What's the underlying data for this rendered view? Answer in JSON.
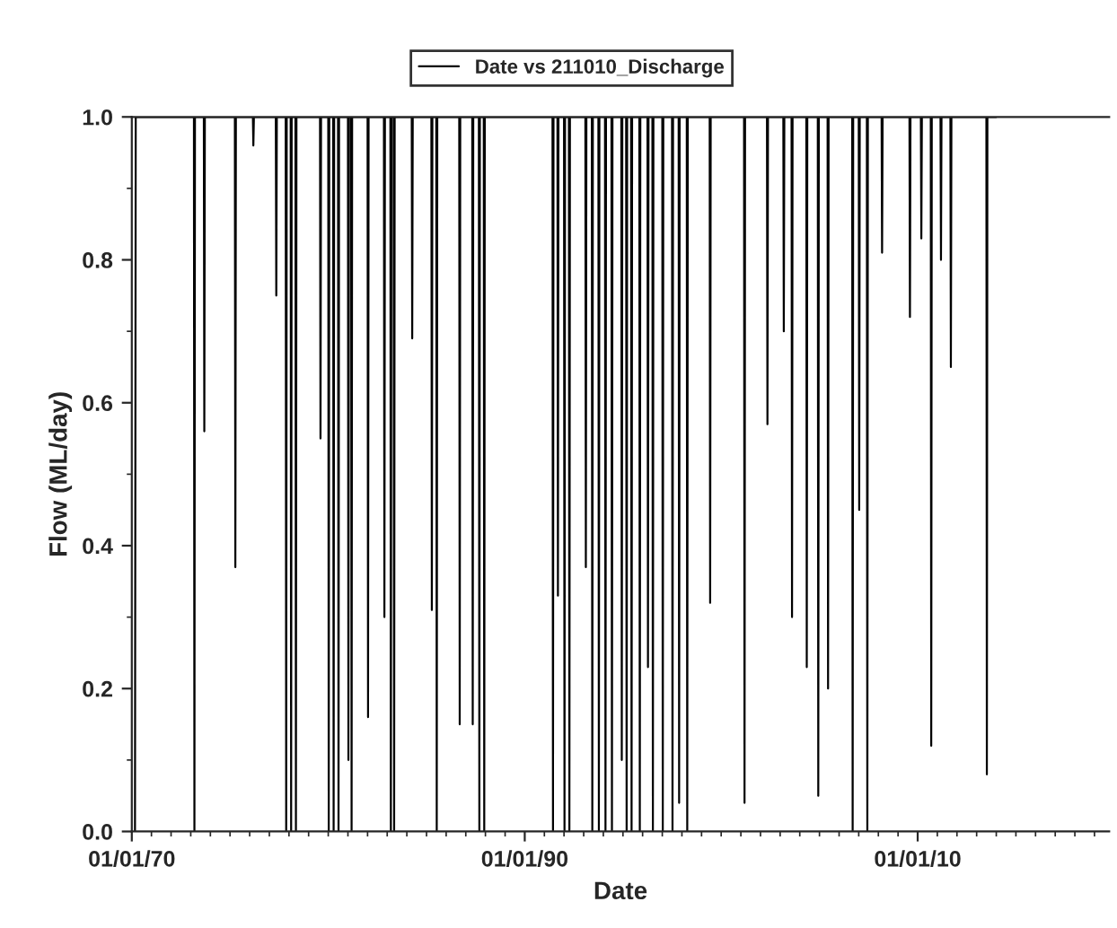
{
  "chart_data": {
    "type": "line",
    "xlabel": "Date",
    "ylabel": "Flow (ML/day)",
    "legend": "top",
    "grid": false,
    "xlim": [
      "1970-01-01",
      "2019-10-01"
    ],
    "ylim": [
      0,
      1.0
    ],
    "xticks": [
      {
        "value": "1970-01-01",
        "label": "01/01/70"
      },
      {
        "value": "1990-01-01",
        "label": "01/01/90"
      },
      {
        "value": "2010-01-01",
        "label": "01/01/10"
      },
      {
        "value": "1971-01-01",
        "label": null
      },
      {
        "value": "1972-01-01",
        "label": null
      },
      {
        "value": "1973-01-01",
        "label": null
      },
      {
        "value": "1974-01-01",
        "label": null
      },
      {
        "value": "1975-01-01",
        "label": null
      },
      {
        "value": "1976-01-01",
        "label": null
      },
      {
        "value": "1977-01-01",
        "label": null
      },
      {
        "value": "1978-01-01",
        "label": null
      },
      {
        "value": "1979-01-01",
        "label": null
      },
      {
        "value": "1980-01-01",
        "label": null
      },
      {
        "value": "1981-01-01",
        "label": null
      },
      {
        "value": "1982-01-01",
        "label": null
      },
      {
        "value": "1983-01-01",
        "label": null
      },
      {
        "value": "1984-01-01",
        "label": null
      },
      {
        "value": "1985-01-01",
        "label": null
      },
      {
        "value": "1986-01-01",
        "label": null
      },
      {
        "value": "1987-01-01",
        "label": null
      },
      {
        "value": "1988-01-01",
        "label": null
      },
      {
        "value": "1989-01-01",
        "label": null
      },
      {
        "value": "1991-01-01",
        "label": null
      },
      {
        "value": "1992-01-01",
        "label": null
      },
      {
        "value": "1993-01-01",
        "label": null
      },
      {
        "value": "1994-01-01",
        "label": null
      },
      {
        "value": "1995-01-01",
        "label": null
      },
      {
        "value": "1996-01-01",
        "label": null
      },
      {
        "value": "1997-01-01",
        "label": null
      },
      {
        "value": "1998-01-01",
        "label": null
      },
      {
        "value": "1999-01-01",
        "label": null
      },
      {
        "value": "2000-01-01",
        "label": null
      },
      {
        "value": "2001-01-01",
        "label": null
      },
      {
        "value": "2002-01-01",
        "label": null
      },
      {
        "value": "2003-01-01",
        "label": null
      },
      {
        "value": "2004-01-01",
        "label": null
      },
      {
        "value": "2005-01-01",
        "label": null
      },
      {
        "value": "2006-01-01",
        "label": null
      },
      {
        "value": "2007-01-01",
        "label": null
      },
      {
        "value": "2008-01-01",
        "label": null
      },
      {
        "value": "2009-01-01",
        "label": null
      },
      {
        "value": "2011-01-01",
        "label": null
      },
      {
        "value": "2012-01-01",
        "label": null
      },
      {
        "value": "2013-01-01",
        "label": null
      },
      {
        "value": "2014-01-01",
        "label": null
      },
      {
        "value": "2015-01-01",
        "label": null
      },
      {
        "value": "2016-01-01",
        "label": null
      },
      {
        "value": "2017-01-01",
        "label": null
      },
      {
        "value": "2018-01-01",
        "label": null
      },
      {
        "value": "2019-01-01",
        "label": null
      }
    ],
    "yticks": [
      {
        "value": 0,
        "label": "0.0"
      },
      0.2,
      0.4,
      0.6,
      0.8,
      {
        "value": 1.0,
        "label": "1.0"
      },
      {
        "value": 0.1,
        "label": null
      },
      {
        "value": 0.3,
        "label": null
      },
      {
        "value": 0.5,
        "label": null
      },
      {
        "value": 0.7,
        "label": null
      },
      {
        "value": 0.9,
        "label": null
      }
    ],
    "series": [
      {
        "name": "Date vs 211010_Discharge",
        "color": "#000000",
        "x": [
          "1970-03-01",
          "1970-03-15",
          "1973-03-01",
          "1973-03-10",
          "1973-03-20",
          "1973-09-01",
          "1973-09-10",
          "1973-09-20",
          "1975-04-01",
          "1975-04-10",
          "1975-04-20",
          "1976-03-01",
          "1976-03-10",
          "1976-03-20",
          "1977-05-01",
          "1977-05-10",
          "1977-05-20",
          "1977-11-01",
          "1977-11-10",
          "1977-11-20",
          "1978-02-01",
          "1978-02-10",
          "1978-02-20",
          "1978-05-01",
          "1978-05-10",
          "1978-05-20",
          "1979-08-01",
          "1979-08-10",
          "1979-08-20",
          "1980-01-01",
          "1980-01-10",
          "1980-01-20",
          "1980-04-01",
          "1980-04-10",
          "1980-04-20",
          "1980-07-01",
          "1980-07-10",
          "1980-07-20",
          "1981-01-01",
          "1981-01-10",
          "1981-01-20",
          "1981-03-01",
          "1981-03-10",
          "1981-03-20",
          "1982-01-01",
          "1982-01-10",
          "1982-01-20",
          "1982-11-01",
          "1982-11-10",
          "1982-11-20",
          "1983-03-01",
          "1983-03-10",
          "1983-03-20",
          "1983-05-01",
          "1983-05-10",
          "1983-05-20",
          "1984-04-01",
          "1984-04-10",
          "1984-04-20",
          "1985-04-01",
          "1985-04-10",
          "1985-04-20",
          "1985-07-01",
          "1985-07-10",
          "1985-07-20",
          "1986-09-01",
          "1986-09-10",
          "1986-09-20",
          "1987-05-01",
          "1987-05-10",
          "1987-05-20",
          "1987-09-01",
          "1987-09-10",
          "1987-09-20",
          "1987-12-01",
          "1987-12-10",
          "1987-12-20",
          "1991-06-01",
          "1991-06-10",
          "1991-06-20",
          "1991-09-01",
          "1991-09-10",
          "1991-09-20",
          "1992-01-01",
          "1992-01-10",
          "1992-01-20",
          "1992-04-01",
          "1992-04-10",
          "1992-04-20",
          "1993-02-01",
          "1993-02-10",
          "1993-02-20",
          "1993-06-01",
          "1993-06-10",
          "1993-06-20",
          "1993-10-01",
          "1993-10-10",
          "1993-10-20",
          "1994-02-01",
          "1994-02-10",
          "1994-02-20",
          "1994-06-01",
          "1994-06-10",
          "1994-06-20",
          "1994-12-01",
          "1994-12-10",
          "1994-12-20",
          "1995-03-01",
          "1995-03-10",
          "1995-03-20",
          "1995-06-01",
          "1995-06-10",
          "1995-06-20",
          "1995-11-01",
          "1995-11-10",
          "1995-11-20",
          "1996-04-01",
          "1996-04-10",
          "1996-04-20",
          "1996-07-01",
          "1996-07-10",
          "1996-07-20",
          "1997-01-01",
          "1997-01-10",
          "1997-01-20",
          "1997-07-01",
          "1997-07-10",
          "1997-07-20",
          "1997-11-01",
          "1997-11-10",
          "1997-11-20",
          "1998-04-01",
          "1998-04-10",
          "1998-04-20",
          "1999-06-01",
          "1999-06-10",
          "1999-06-20",
          "2001-03-01",
          "2001-03-10",
          "2001-03-20",
          "2002-05-01",
          "2002-05-10",
          "2002-05-20",
          "2003-03-01",
          "2003-03-10",
          "2003-03-20",
          "2003-08-01",
          "2003-08-10",
          "2003-08-20",
          "2004-05-01",
          "2004-05-10",
          "2004-05-20",
          "2004-12-01",
          "2004-12-10",
          "2004-12-20",
          "2005-06-01",
          "2005-06-10",
          "2005-06-20",
          "2006-09-01",
          "2006-09-10",
          "2006-09-20",
          "2007-01-01",
          "2007-01-10",
          "2007-01-20",
          "2007-06-01",
          "2007-06-10",
          "2007-06-20",
          "2008-03-01",
          "2008-03-10",
          "2008-03-20",
          "2009-08-01",
          "2009-08-10",
          "2009-08-20",
          "2010-03-01",
          "2010-03-10",
          "2010-03-20",
          "2010-09-01",
          "2010-09-10",
          "2010-09-20",
          "2011-03-01",
          "2011-03-10",
          "2011-03-20",
          "2011-09-01",
          "2011-09-10",
          "2011-09-20",
          "2013-07-01",
          "2013-07-10",
          "2013-07-20",
          "2014-01-01"
        ],
        "values": [
          0,
          1,
          1,
          0,
          1,
          1,
          0.56,
          1,
          1,
          0.37,
          1,
          1,
          0.96,
          1,
          1,
          0.75,
          1,
          1,
          0,
          1,
          1,
          0,
          1,
          1,
          0,
          1,
          1,
          0.55,
          1,
          1,
          0,
          1,
          1,
          0,
          1,
          1,
          0,
          1,
          1,
          0.1,
          1,
          1,
          0,
          1,
          1,
          0.16,
          1,
          1,
          0.3,
          1,
          1,
          0,
          1,
          1,
          0,
          1,
          1,
          0.69,
          1,
          1,
          0.31,
          1,
          1,
          0,
          1,
          1,
          0.15,
          1,
          1,
          0.15,
          1,
          1,
          0,
          1,
          1,
          0,
          1,
          1,
          0,
          1,
          1,
          0.33,
          1,
          1,
          0,
          1,
          1,
          0,
          1,
          1,
          0.37,
          1,
          1,
          0,
          1,
          1,
          0,
          1,
          1,
          0,
          1,
          1,
          0,
          1,
          1,
          0.1,
          1,
          1,
          0,
          1,
          1,
          0,
          1,
          1,
          0,
          1,
          1,
          0.23,
          1,
          1,
          0,
          1,
          1,
          0,
          1,
          1,
          0,
          1,
          1,
          0.04,
          1,
          1,
          0,
          1,
          1,
          0.32,
          1,
          1,
          0.04,
          1,
          1,
          0.57,
          1,
          1,
          0.7,
          1,
          1,
          0.3,
          1,
          1,
          0.23,
          1,
          1,
          0.05,
          1,
          1,
          0.2,
          1,
          1,
          0,
          1,
          1,
          0.45,
          1,
          1,
          0,
          1,
          1,
          0.81,
          1,
          1,
          0.72,
          1,
          1,
          0.83,
          1,
          1,
          0.12,
          1,
          1,
          0.8,
          1,
          1,
          0.65,
          1,
          1,
          0.08,
          1,
          1
        ]
      }
    ]
  }
}
